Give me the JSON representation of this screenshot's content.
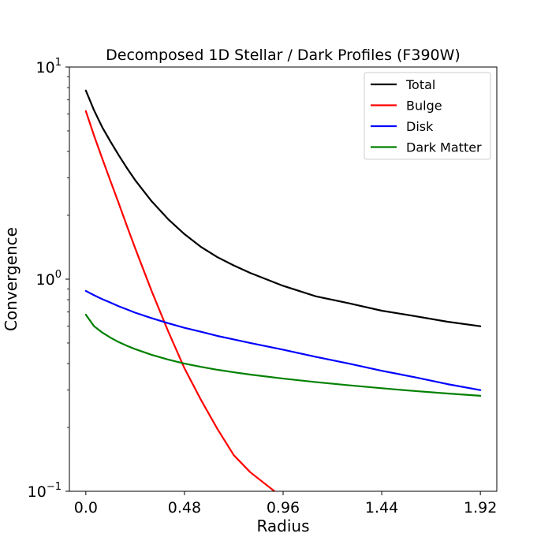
{
  "chart_data": {
    "type": "line",
    "title": "Decomposed 1D Stellar / Dark Profiles (F390W)",
    "xlabel": "Radius",
    "ylabel": "Convergence",
    "xlim": [
      -0.08,
      2.0
    ],
    "ylim": [
      0.1,
      10
    ],
    "yscale": "log",
    "grid": false,
    "legend_position": "top-right",
    "xticks": [
      0.0,
      0.48,
      0.96,
      1.44,
      1.92
    ],
    "xtick_labels": [
      "0.0",
      "0.48",
      "0.96",
      "1.44",
      "1.92"
    ],
    "yticks": [
      0.1,
      1,
      10
    ],
    "ytick_labels": [
      {
        "base": "10",
        "exp": "−1"
      },
      {
        "base": "10",
        "exp": "0"
      },
      {
        "base": "10",
        "exp": "1"
      }
    ],
    "x": [
      0.0,
      0.04,
      0.08,
      0.12,
      0.16,
      0.2,
      0.24,
      0.32,
      0.4,
      0.48,
      0.56,
      0.64,
      0.72,
      0.8,
      0.96,
      1.12,
      1.28,
      1.44,
      1.6,
      1.76,
      1.92
    ],
    "series": [
      {
        "name": "Total",
        "color": "#000000",
        "values": [
          7.75,
          6.25,
          5.2,
          4.45,
          3.84,
          3.34,
          2.93,
          2.33,
          1.92,
          1.63,
          1.42,
          1.27,
          1.16,
          1.07,
          0.93,
          0.83,
          0.77,
          0.71,
          0.67,
          0.63,
          0.6
        ]
      },
      {
        "name": "Bulge",
        "color": "#ff0000",
        "values": [
          6.2,
          4.75,
          3.7,
          2.9,
          2.28,
          1.78,
          1.4,
          0.88,
          0.57,
          0.38,
          0.27,
          0.197,
          0.148,
          0.123,
          0.093,
          null,
          null,
          null,
          null,
          null,
          null
        ]
      },
      {
        "name": "Disk",
        "color": "#0000ff",
        "values": [
          0.88,
          0.84,
          0.805,
          0.775,
          0.745,
          0.72,
          0.695,
          0.655,
          0.62,
          0.59,
          0.565,
          0.54,
          0.52,
          0.5,
          0.465,
          0.43,
          0.4,
          0.37,
          0.345,
          0.32,
          0.3
        ]
      },
      {
        "name": "Dark Matter",
        "color": "#008000",
        "values": [
          0.68,
          0.6,
          0.56,
          0.53,
          0.505,
          0.485,
          0.468,
          0.44,
          0.418,
          0.4,
          0.386,
          0.374,
          0.364,
          0.355,
          0.34,
          0.327,
          0.316,
          0.306,
          0.297,
          0.289,
          0.282
        ]
      }
    ]
  }
}
